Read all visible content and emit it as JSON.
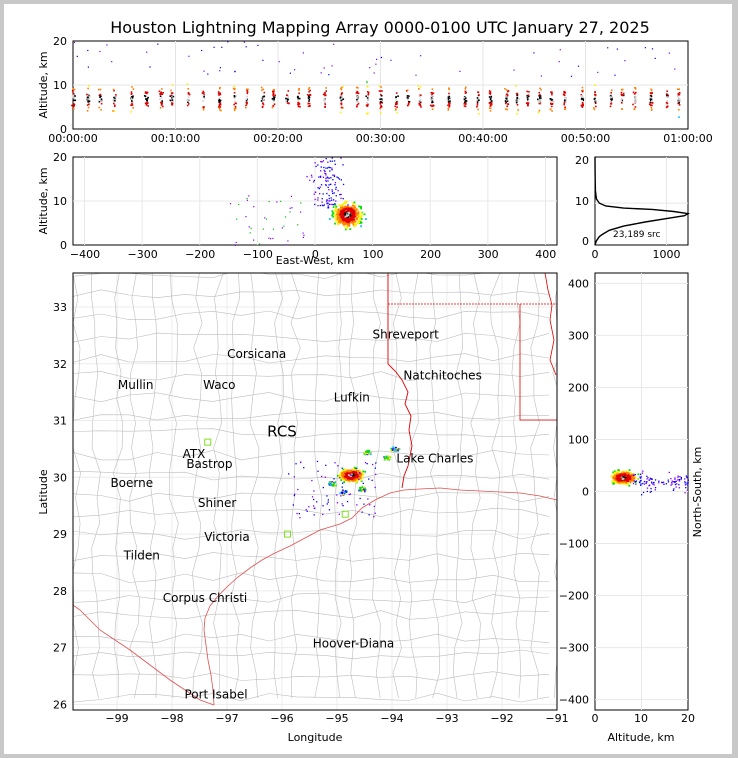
{
  "title": "Houston Lightning Mapping Array 0000-0100 UTC January 27, 2025",
  "time_panel": {
    "ylabel": "Altitude, km",
    "yticks": [
      "0",
      "10",
      "20"
    ],
    "xticks": [
      "00:00:00",
      "00:10:00",
      "00:20:00",
      "00:30:00",
      "00:40:00",
      "00:50:00",
      "01:00:00"
    ]
  },
  "ew_panel": {
    "ylabel": "Altitude, km",
    "xlabel": "East-West, km",
    "xticks": [
      "−400",
      "−300",
      "−200",
      "−100",
      "0",
      "100",
      "200",
      "300",
      "400"
    ],
    "yticks": [
      "0",
      "10",
      "20"
    ]
  },
  "hist_panel": {
    "xticks": [
      "0",
      "1000"
    ],
    "yticks": [
      "0",
      "10",
      "20"
    ],
    "annotation": "23,189 src"
  },
  "map_panel": {
    "xlabel": "Longitude",
    "ylabel": "Latitude",
    "xticks": [
      "−99",
      "−98",
      "−97",
      "−96",
      "−95",
      "−94",
      "−93",
      "−92",
      "−91"
    ],
    "yticks": [
      "26",
      "27",
      "28",
      "29",
      "30",
      "31",
      "32",
      "33"
    ],
    "cities": [
      {
        "name": "Shreveport",
        "lon": -93.75,
        "lat": 32.45,
        "color": "#000000"
      },
      {
        "name": "Corsicana",
        "lon": -96.46,
        "lat": 32.1,
        "color": "#000000"
      },
      {
        "name": "Natchitoches",
        "lon": -93.08,
        "lat": 31.72,
        "color": "#000000"
      },
      {
        "name": "Mullin",
        "lon": -98.66,
        "lat": 31.56,
        "color": "#f08040"
      },
      {
        "name": "Waco",
        "lon": -97.14,
        "lat": 31.56,
        "color": "#000000"
      },
      {
        "name": "Lufkin",
        "lon": -94.73,
        "lat": 31.34,
        "color": "#000000"
      },
      {
        "name": "RCS",
        "lon": -96.0,
        "lat": 30.72,
        "color": "#400000"
      },
      {
        "name": "ATX",
        "lon": -97.6,
        "lat": 30.34,
        "color": "#f08040"
      },
      {
        "name": "Bastrop",
        "lon": -97.32,
        "lat": 30.16,
        "color": "#000000"
      },
      {
        "name": "Lake Charles",
        "lon": -93.22,
        "lat": 30.26,
        "color": "#000000"
      },
      {
        "name": "Boerne",
        "lon": -98.73,
        "lat": 29.83,
        "color": "#000000"
      },
      {
        "name": "Shiner",
        "lon": -97.18,
        "lat": 29.48,
        "color": "#000000"
      },
      {
        "name": "Victoria",
        "lon": -97.0,
        "lat": 28.88,
        "color": "#000000"
      },
      {
        "name": "Tilden",
        "lon": -98.55,
        "lat": 28.55,
        "color": "#000000"
      },
      {
        "name": "Corpus Christi",
        "lon": -97.4,
        "lat": 27.8,
        "color": "#000000"
      },
      {
        "name": "Hoover-Diana",
        "lon": -94.7,
        "lat": 27.0,
        "color": "#2020e0"
      },
      {
        "name": "Port Isabel",
        "lon": -97.2,
        "lat": 26.1,
        "color": "#000000"
      }
    ]
  },
  "ns_panel": {
    "xlabel": "Altitude, km",
    "ylabel": "North-South, km",
    "xticks": [
      "0",
      "10",
      "20"
    ],
    "yticks": [
      "−400",
      "−300",
      "−200",
      "−100",
      "0",
      "100",
      "200",
      "300",
      "400"
    ]
  },
  "chart_data": [
    {
      "type": "scatter",
      "name": "altitude-time",
      "x_range_minutes": [
        0,
        60
      ],
      "ylim": [
        0,
        20
      ],
      "cell_altitude_km": [
        3,
        12
      ],
      "peak_altitude_km": 7
    },
    {
      "type": "scatter",
      "name": "altitude-east-west",
      "xlim": [
        -420,
        420
      ],
      "ylim": [
        0,
        20
      ],
      "cluster_center": {
        "x": 55,
        "y": 7
      }
    },
    {
      "type": "line",
      "name": "altitude-histogram",
      "xlim": [
        0,
        1300
      ],
      "ylim": [
        0,
        21
      ],
      "x": [
        0,
        10,
        20,
        40,
        60,
        100,
        200,
        400,
        700,
        1000,
        1250,
        1300,
        1100,
        800,
        400,
        150,
        60,
        20,
        5,
        2,
        0
      ],
      "y": [
        0,
        0.5,
        1,
        1.5,
        2,
        2.5,
        3.5,
        4.5,
        5.5,
        6.3,
        7,
        7.5,
        8,
        8.5,
        8.8,
        9.3,
        10,
        11,
        13,
        17,
        21
      ]
    },
    {
      "type": "scatter",
      "name": "plan-view",
      "xlim": [
        -99.8,
        -91.0
      ],
      "ylim": [
        25.9,
        33.6
      ],
      "cluster_center": {
        "lon": -94.75,
        "lat": 30.05
      }
    },
    {
      "type": "scatter",
      "name": "north-south-altitude",
      "xlim": [
        0,
        20
      ],
      "ylim": [
        -420,
        420
      ],
      "cluster_center": {
        "x": 6,
        "y": 28
      }
    }
  ]
}
